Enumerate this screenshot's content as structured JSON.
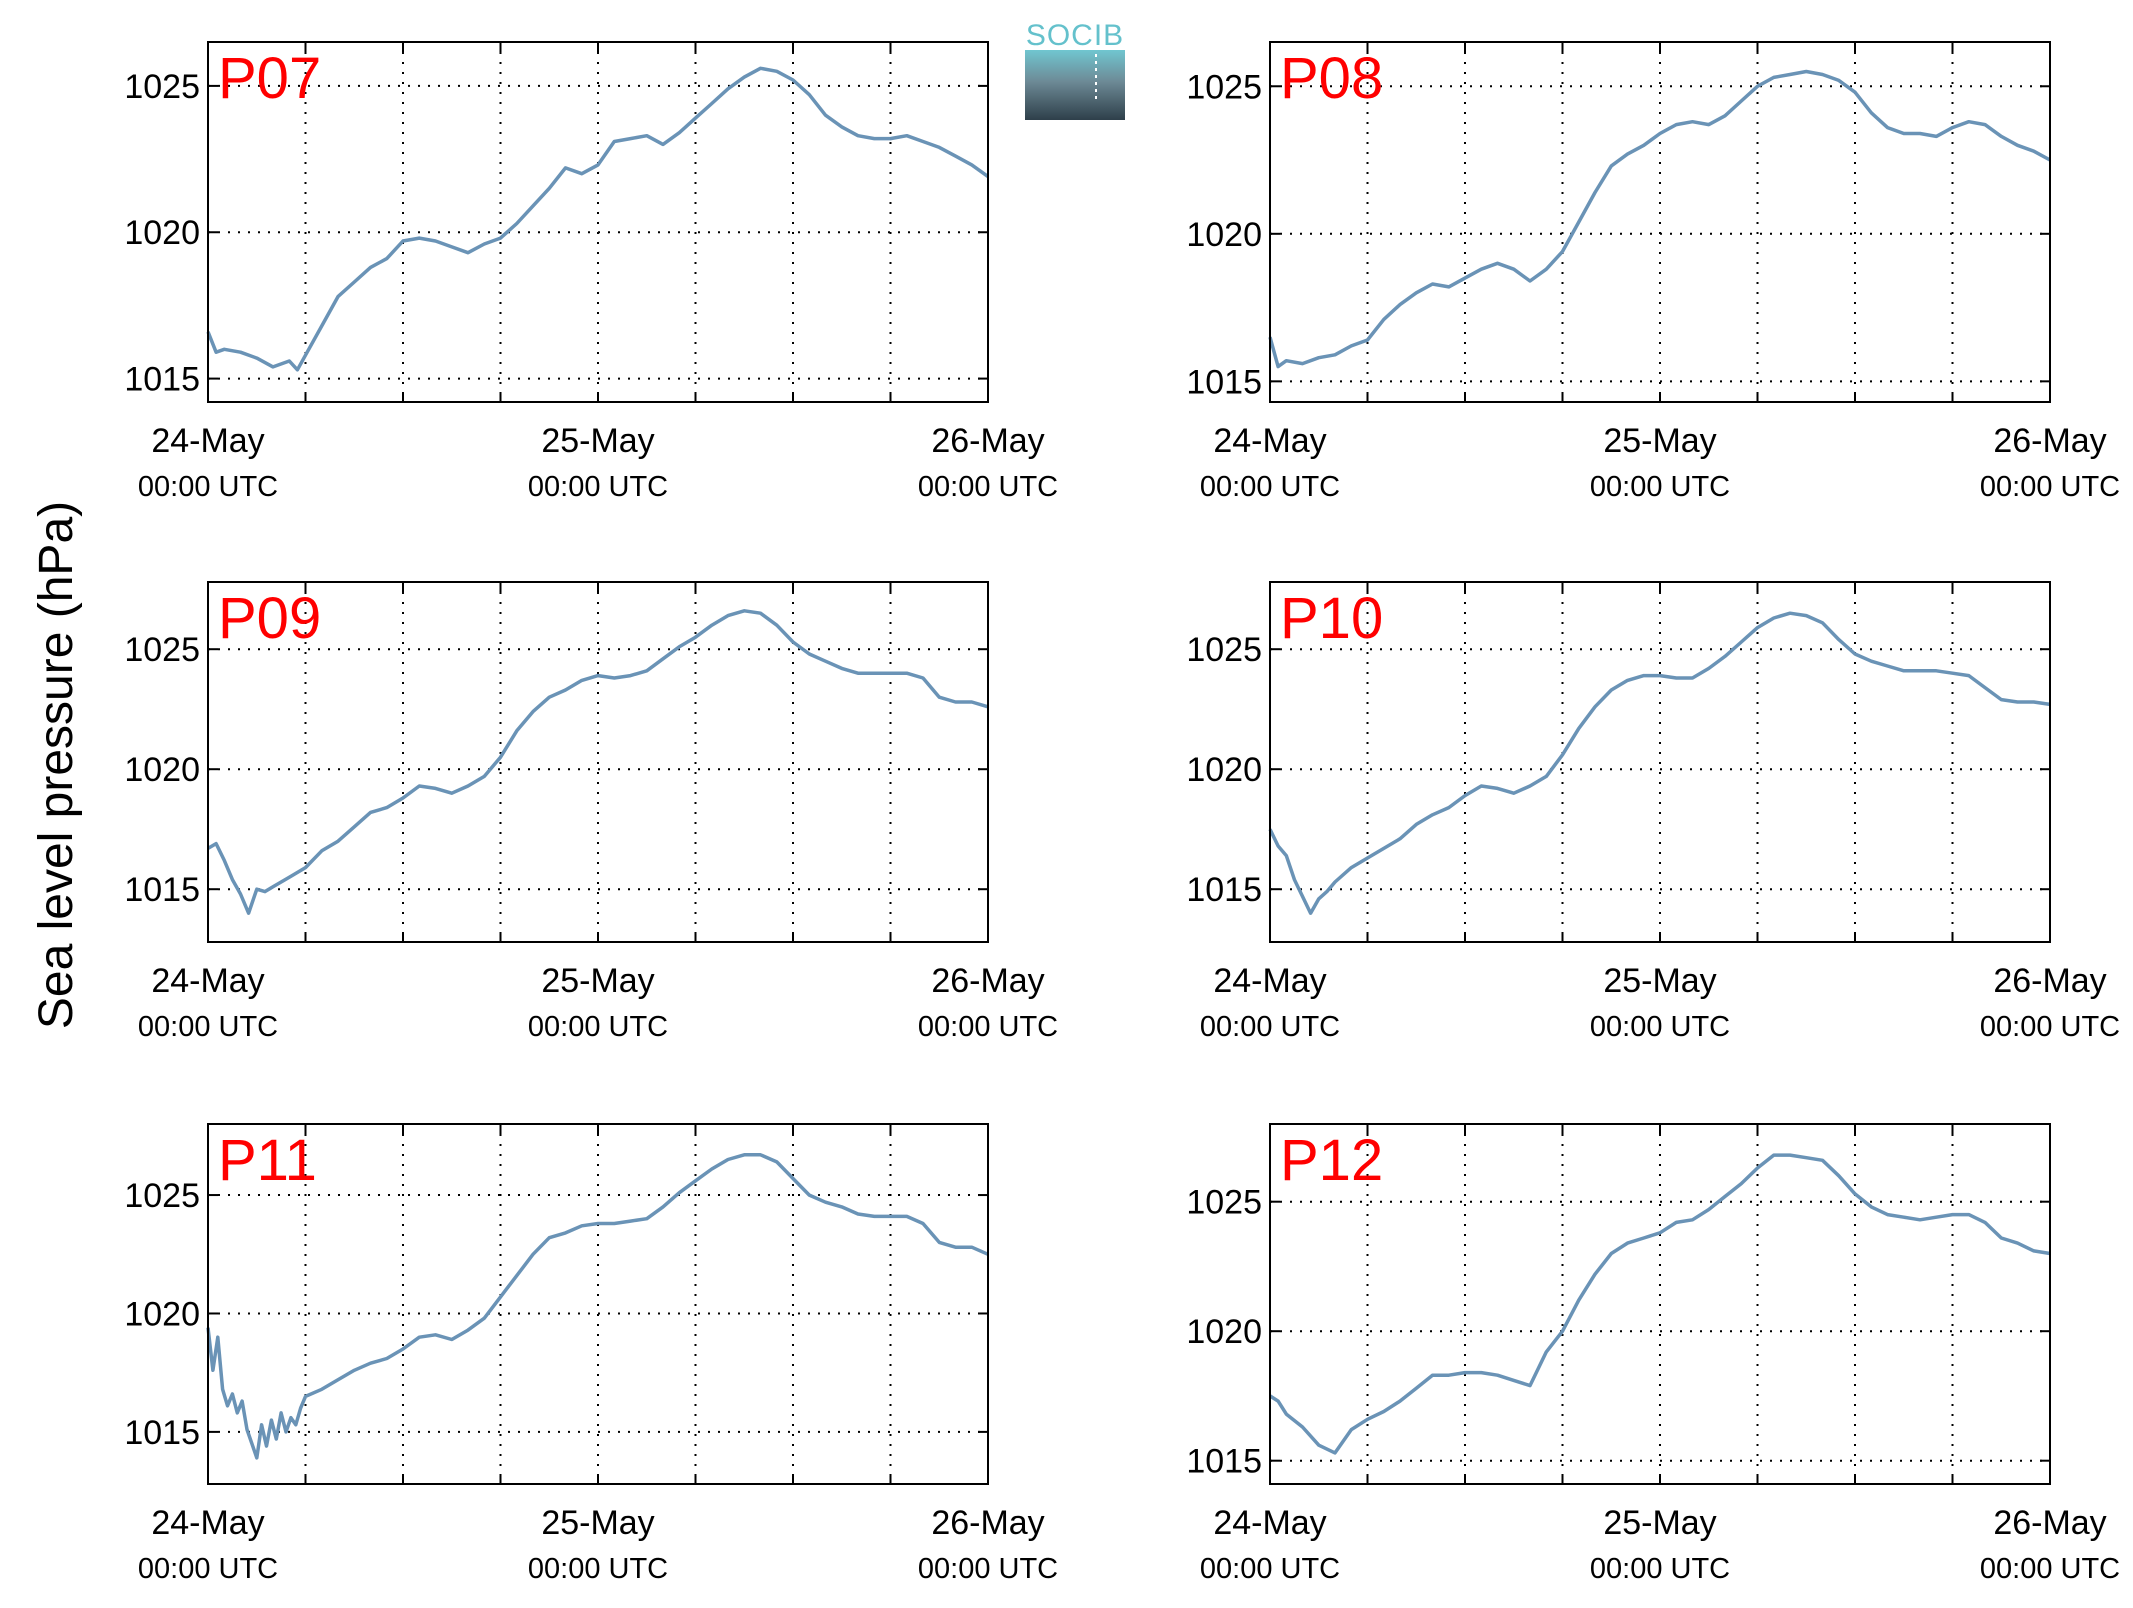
{
  "figure": {
    "ylabel": "Sea level pressure (hPa)",
    "logo_text": "SOCIB"
  },
  "colors": {
    "line": "#6a93b6",
    "panel_label": "#ff0000",
    "grid": "#000000",
    "logo_top": "#70c6d0",
    "logo_bottom": "#2e3f4a"
  },
  "chart_data": [
    {
      "type": "line",
      "label": "P07",
      "x_ticks": [
        {
          "top": "24-May",
          "bottom": "00:00 UTC"
        },
        {
          "top": "25-May",
          "bottom": "00:00 UTC"
        },
        {
          "top": "26-May",
          "bottom": "00:00 UTC"
        }
      ],
      "x_range_hours": [
        0,
        48
      ],
      "x_grid_step_hours": 6,
      "ylim": [
        1014.2,
        1026.5
      ],
      "yticks": [
        1015,
        1020,
        1025
      ],
      "grid": true,
      "series": [
        {
          "x": [
            0,
            0.5,
            1,
            2,
            3,
            4,
            5,
            5.5,
            6,
            7,
            8,
            9,
            10,
            11,
            12,
            13,
            14,
            15,
            16,
            17,
            18,
            19,
            20,
            21,
            22,
            23,
            24,
            25,
            26,
            27,
            28,
            29,
            30,
            31,
            32,
            33,
            34,
            35,
            36,
            37,
            38,
            39,
            40,
            41,
            42,
            43,
            44,
            45,
            46,
            47,
            48
          ],
          "y": [
            1016.6,
            1015.9,
            1016.0,
            1015.9,
            1015.7,
            1015.4,
            1015.6,
            1015.3,
            1015.8,
            1016.8,
            1017.8,
            1018.3,
            1018.8,
            1019.1,
            1019.7,
            1019.8,
            1019.7,
            1019.5,
            1019.3,
            1019.6,
            1019.8,
            1020.3,
            1020.9,
            1021.5,
            1022.2,
            1022.0,
            1022.3,
            1023.1,
            1023.2,
            1023.3,
            1023.0,
            1023.4,
            1023.9,
            1024.4,
            1024.9,
            1025.3,
            1025.6,
            1025.5,
            1025.2,
            1024.7,
            1024.0,
            1023.6,
            1023.3,
            1023.2,
            1023.2,
            1023.3,
            1023.1,
            1022.9,
            1022.6,
            1022.3,
            1021.9
          ]
        }
      ]
    },
    {
      "type": "line",
      "label": "P08",
      "x_ticks": [
        {
          "top": "24-May",
          "bottom": "00:00 UTC"
        },
        {
          "top": "25-May",
          "bottom": "00:00 UTC"
        },
        {
          "top": "26-May",
          "bottom": "00:00 UTC"
        }
      ],
      "x_range_hours": [
        0,
        48
      ],
      "x_grid_step_hours": 6,
      "ylim": [
        1014.3,
        1026.5
      ],
      "yticks": [
        1015,
        1020,
        1025
      ],
      "grid": true,
      "series": [
        {
          "x": [
            0,
            0.5,
            1,
            2,
            3,
            4,
            5,
            6,
            7,
            8,
            9,
            10,
            11,
            12,
            13,
            14,
            15,
            16,
            17,
            18,
            19,
            20,
            21,
            22,
            23,
            24,
            25,
            26,
            27,
            28,
            29,
            30,
            31,
            32,
            33,
            34,
            35,
            36,
            37,
            38,
            39,
            40,
            41,
            42,
            43,
            44,
            45,
            46,
            47,
            48
          ],
          "y": [
            1016.5,
            1015.5,
            1015.7,
            1015.6,
            1015.8,
            1015.9,
            1016.2,
            1016.4,
            1017.1,
            1017.6,
            1018.0,
            1018.3,
            1018.2,
            1018.5,
            1018.8,
            1019.0,
            1018.8,
            1018.4,
            1018.8,
            1019.4,
            1020.4,
            1021.4,
            1022.3,
            1022.7,
            1023.0,
            1023.4,
            1023.7,
            1023.8,
            1023.7,
            1024.0,
            1024.5,
            1025.0,
            1025.3,
            1025.4,
            1025.5,
            1025.4,
            1025.2,
            1024.8,
            1024.1,
            1023.6,
            1023.4,
            1023.4,
            1023.3,
            1023.6,
            1023.8,
            1023.7,
            1023.3,
            1023.0,
            1022.8,
            1022.5
          ]
        }
      ]
    },
    {
      "type": "line",
      "label": "P09",
      "x_ticks": [
        {
          "top": "24-May",
          "bottom": "00:00 UTC"
        },
        {
          "top": "25-May",
          "bottom": "00:00 UTC"
        },
        {
          "top": "26-May",
          "bottom": "00:00 UTC"
        }
      ],
      "x_range_hours": [
        0,
        48
      ],
      "x_grid_step_hours": 6,
      "ylim": [
        1012.8,
        1027.8
      ],
      "yticks": [
        1015,
        1020,
        1025
      ],
      "grid": true,
      "series": [
        {
          "x": [
            0,
            0.5,
            1,
            1.5,
            2,
            2.5,
            3,
            3.5,
            4,
            5,
            6,
            7,
            8,
            9,
            10,
            11,
            12,
            13,
            14,
            15,
            16,
            17,
            18,
            19,
            20,
            21,
            22,
            23,
            24,
            25,
            26,
            27,
            28,
            29,
            30,
            31,
            32,
            33,
            34,
            35,
            36,
            37,
            38,
            39,
            40,
            41,
            42,
            43,
            44,
            45,
            46,
            47,
            48
          ],
          "y": [
            1016.7,
            1016.9,
            1016.2,
            1015.4,
            1014.8,
            1014.0,
            1015.0,
            1014.9,
            1015.1,
            1015.5,
            1015.9,
            1016.6,
            1017.0,
            1017.6,
            1018.2,
            1018.4,
            1018.8,
            1019.3,
            1019.2,
            1019.0,
            1019.3,
            1019.7,
            1020.5,
            1021.6,
            1022.4,
            1023.0,
            1023.3,
            1023.7,
            1023.9,
            1023.8,
            1023.9,
            1024.1,
            1024.6,
            1025.1,
            1025.5,
            1026.0,
            1026.4,
            1026.6,
            1026.5,
            1026.0,
            1025.3,
            1024.8,
            1024.5,
            1024.2,
            1024.0,
            1024.0,
            1024.0,
            1024.0,
            1023.8,
            1023.0,
            1022.8,
            1022.8,
            1022.6
          ]
        }
      ]
    },
    {
      "type": "line",
      "label": "P10",
      "x_ticks": [
        {
          "top": "24-May",
          "bottom": "00:00 UTC"
        },
        {
          "top": "25-May",
          "bottom": "00:00 UTC"
        },
        {
          "top": "26-May",
          "bottom": "00:00 UTC"
        }
      ],
      "x_range_hours": [
        0,
        48
      ],
      "x_grid_step_hours": 6,
      "ylim": [
        1012.8,
        1027.8
      ],
      "yticks": [
        1015,
        1020,
        1025
      ],
      "grid": true,
      "series": [
        {
          "x": [
            0,
            0.5,
            1,
            1.5,
            2,
            2.5,
            3,
            3.5,
            4,
            5,
            6,
            7,
            8,
            9,
            10,
            11,
            12,
            13,
            14,
            15,
            16,
            17,
            18,
            19,
            20,
            21,
            22,
            23,
            24,
            25,
            26,
            27,
            28,
            29,
            30,
            31,
            32,
            33,
            34,
            35,
            36,
            37,
            38,
            39,
            40,
            41,
            42,
            43,
            44,
            45,
            46,
            47,
            48
          ],
          "y": [
            1017.5,
            1016.8,
            1016.4,
            1015.4,
            1014.7,
            1014.0,
            1014.6,
            1014.9,
            1015.3,
            1015.9,
            1016.3,
            1016.7,
            1017.1,
            1017.7,
            1018.1,
            1018.4,
            1018.9,
            1019.3,
            1019.2,
            1019.0,
            1019.3,
            1019.7,
            1020.6,
            1021.7,
            1022.6,
            1023.3,
            1023.7,
            1023.9,
            1023.9,
            1023.8,
            1023.8,
            1024.2,
            1024.7,
            1025.3,
            1025.9,
            1026.3,
            1026.5,
            1026.4,
            1026.1,
            1025.4,
            1024.8,
            1024.5,
            1024.3,
            1024.1,
            1024.1,
            1024.1,
            1024.0,
            1023.9,
            1023.4,
            1022.9,
            1022.8,
            1022.8,
            1022.7
          ]
        }
      ]
    },
    {
      "type": "line",
      "label": "P11",
      "x_ticks": [
        {
          "top": "24-May",
          "bottom": "00:00 UTC"
        },
        {
          "top": "25-May",
          "bottom": "00:00 UTC"
        },
        {
          "top": "26-May",
          "bottom": "00:00 UTC"
        }
      ],
      "x_range_hours": [
        0,
        48
      ],
      "x_grid_step_hours": 6,
      "ylim": [
        1012.8,
        1028.0
      ],
      "yticks": [
        1015,
        1020,
        1025
      ],
      "grid": true,
      "series": [
        {
          "x": [
            0,
            0.3,
            0.6,
            0.9,
            1.2,
            1.5,
            1.8,
            2.1,
            2.4,
            2.7,
            3.0,
            3.3,
            3.6,
            3.9,
            4.2,
            4.5,
            4.8,
            5.1,
            5.4,
            5.7,
            6,
            7,
            8,
            9,
            10,
            11,
            12,
            13,
            14,
            15,
            16,
            17,
            18,
            19,
            20,
            21,
            22,
            23,
            24,
            25,
            26,
            27,
            28,
            29,
            30,
            31,
            32,
            33,
            34,
            35,
            36,
            37,
            38,
            39,
            40,
            41,
            42,
            43,
            44,
            45,
            46,
            47,
            48
          ],
          "y": [
            1019.4,
            1017.6,
            1019.0,
            1016.8,
            1016.1,
            1016.6,
            1015.8,
            1016.3,
            1015.1,
            1014.5,
            1013.9,
            1015.3,
            1014.4,
            1015.5,
            1014.7,
            1015.8,
            1015.0,
            1015.6,
            1015.3,
            1016.0,
            1016.5,
            1016.8,
            1017.2,
            1017.6,
            1017.9,
            1018.1,
            1018.5,
            1019.0,
            1019.1,
            1018.9,
            1019.3,
            1019.8,
            1020.7,
            1021.6,
            1022.5,
            1023.2,
            1023.4,
            1023.7,
            1023.8,
            1023.8,
            1023.9,
            1024.0,
            1024.5,
            1025.1,
            1025.6,
            1026.1,
            1026.5,
            1026.7,
            1026.7,
            1026.4,
            1025.7,
            1025.0,
            1024.7,
            1024.5,
            1024.2,
            1024.1,
            1024.1,
            1024.1,
            1023.8,
            1023.0,
            1022.8,
            1022.8,
            1022.5
          ]
        }
      ]
    },
    {
      "type": "line",
      "label": "P12",
      "x_ticks": [
        {
          "top": "24-May",
          "bottom": "00:00 UTC"
        },
        {
          "top": "25-May",
          "bottom": "00:00 UTC"
        },
        {
          "top": "26-May",
          "bottom": "00:00 UTC"
        }
      ],
      "x_range_hours": [
        0,
        48
      ],
      "x_grid_step_hours": 6,
      "ylim": [
        1014.1,
        1028.0
      ],
      "yticks": [
        1015,
        1020,
        1025
      ],
      "grid": true,
      "series": [
        {
          "x": [
            0,
            0.5,
            1,
            2,
            3,
            4,
            5,
            6,
            7,
            8,
            9,
            10,
            11,
            12,
            13,
            14,
            15,
            16,
            17,
            18,
            19,
            20,
            21,
            22,
            23,
            24,
            25,
            26,
            27,
            28,
            29,
            30,
            31,
            32,
            33,
            34,
            35,
            36,
            37,
            38,
            39,
            40,
            41,
            42,
            43,
            44,
            45,
            46,
            47,
            48
          ],
          "y": [
            1017.5,
            1017.3,
            1016.8,
            1016.3,
            1015.6,
            1015.3,
            1016.2,
            1016.6,
            1016.9,
            1017.3,
            1017.8,
            1018.3,
            1018.3,
            1018.4,
            1018.4,
            1018.3,
            1018.1,
            1017.9,
            1019.2,
            1020.0,
            1021.2,
            1022.2,
            1023.0,
            1023.4,
            1023.6,
            1023.8,
            1024.2,
            1024.3,
            1024.7,
            1025.2,
            1025.7,
            1026.3,
            1026.8,
            1026.8,
            1026.7,
            1026.6,
            1026.0,
            1025.3,
            1024.8,
            1024.5,
            1024.4,
            1024.3,
            1024.4,
            1024.5,
            1024.5,
            1024.2,
            1023.6,
            1023.4,
            1023.1,
            1023.0
          ]
        }
      ]
    }
  ]
}
